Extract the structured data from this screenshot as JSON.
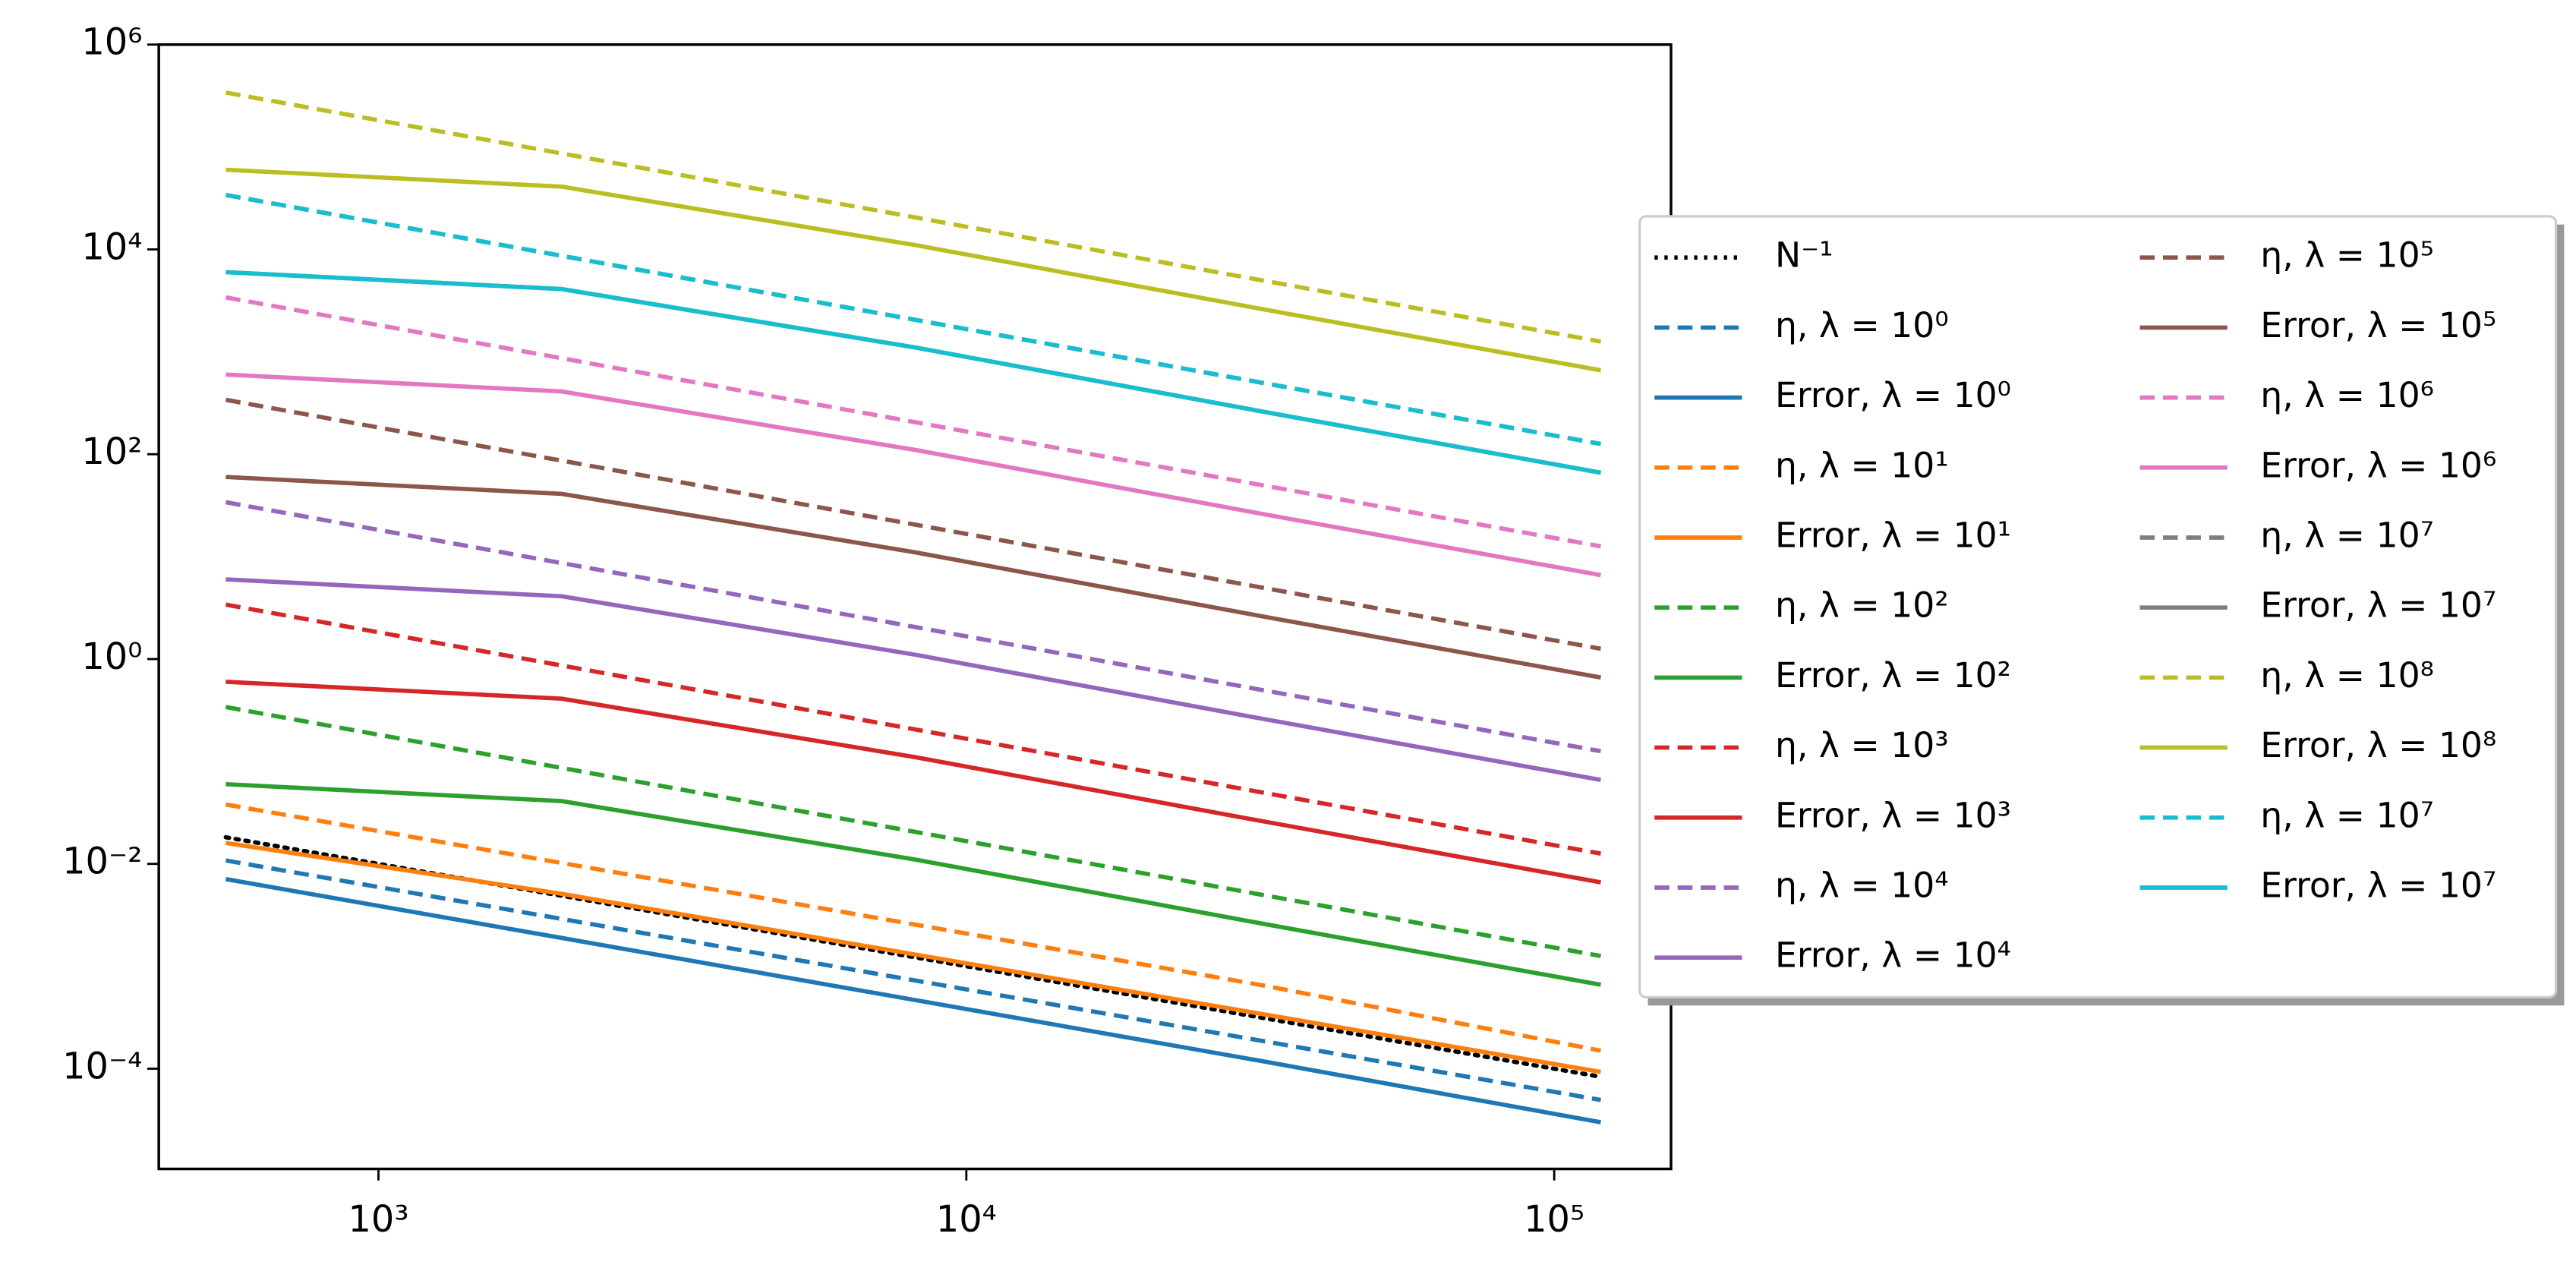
{
  "chart_data": {
    "type": "line",
    "x": [
      550,
      2050,
      8200,
      32000,
      120000
    ],
    "xlim": [
      423,
      158000
    ],
    "ylim": [
      1.05e-05,
      1000000
    ],
    "xscale": "log",
    "yscale": "log",
    "xticks": [
      {
        "value": 1000,
        "label": "10³"
      },
      {
        "value": 10000,
        "label": "10⁴"
      },
      {
        "value": 100000,
        "label": "10⁵"
      }
    ],
    "yticks": [
      {
        "value": 0.0001,
        "label": "10⁻⁴"
      },
      {
        "value": 0.01,
        "label": "10⁻²"
      },
      {
        "value": 1,
        "label": "10⁰"
      },
      {
        "value": 100,
        "label": "10²"
      },
      {
        "value": 10000,
        "label": "10⁴"
      },
      {
        "value": 1000000,
        "label": "10⁶"
      }
    ],
    "legend_loc": "right",
    "legend_columns": 2,
    "series": [
      {
        "name": "N⁻¹",
        "color": "#000000",
        "style": "dotted",
        "values": [
          0.01818,
          0.004878,
          0.00122,
          0.0003125,
          8.33e-05
        ]
      },
      {
        "name": "η, λ = 10⁰",
        "color": "#1f77b4",
        "style": "dashed",
        "values": [
          0.0108,
          0.0029,
          0.000725,
          0.000186,
          4.95e-05
        ]
      },
      {
        "name": "Error, λ = 10⁰",
        "color": "#1f77b4",
        "style": "solid",
        "values": [
          0.0071,
          0.00189,
          0.000467,
          0.000118,
          3e-05
        ]
      },
      {
        "name": "η, λ = 10¹",
        "color": "#ff7f0e",
        "style": "dashed",
        "values": [
          0.038,
          0.0102,
          0.00255,
          0.00065,
          0.00015
        ]
      },
      {
        "name": "Error, λ = 10¹",
        "color": "#ff7f0e",
        "style": "solid",
        "values": [
          0.016,
          0.0051,
          0.0013,
          0.00034,
          9.3e-05
        ]
      },
      {
        "name": "η, λ = 10²",
        "color": "#2ca02c",
        "style": "dashed",
        "values": [
          0.34,
          0.0865,
          0.0205,
          0.00496,
          0.00126
        ]
      },
      {
        "name": "Error, λ = 10²",
        "color": "#2ca02c",
        "style": "solid",
        "values": [
          0.06,
          0.041,
          0.011,
          0.0026,
          0.00066
        ]
      },
      {
        "name": "η, λ = 10³",
        "color": "#d62728",
        "style": "dashed",
        "values": [
          3.4,
          0.865,
          0.205,
          0.0496,
          0.0126
        ]
      },
      {
        "name": "Error, λ = 10³",
        "color": "#d62728",
        "style": "solid",
        "values": [
          0.6,
          0.41,
          0.11,
          0.026,
          0.0066
        ]
      },
      {
        "name": "η, λ = 10⁴",
        "color": "#9467bd",
        "style": "dashed",
        "values": [
          34,
          8.65,
          2.05,
          0.496,
          0.126
        ]
      },
      {
        "name": "Error, λ = 10⁴",
        "color": "#9467bd",
        "style": "solid",
        "values": [
          6,
          4.1,
          1.1,
          0.26,
          0.066
        ]
      },
      {
        "name": "η, λ = 10⁵",
        "color": "#8c564b",
        "style": "dashed",
        "values": [
          340,
          86.5,
          20.5,
          4.96,
          1.26
        ]
      },
      {
        "name": "Error, λ = 10⁵",
        "color": "#8c564b",
        "style": "solid",
        "values": [
          60,
          41,
          11,
          2.6,
          0.66
        ]
      },
      {
        "name": "η, λ = 10⁶",
        "color": "#e377c2",
        "style": "dashed",
        "values": [
          3400,
          865,
          205,
          49.6,
          12.6
        ]
      },
      {
        "name": "Error, λ = 10⁶",
        "color": "#e377c2",
        "style": "solid",
        "values": [
          600,
          410,
          110,
          26,
          6.6
        ]
      },
      {
        "name": "η, λ = 10⁷",
        "color": "#7f7f7f",
        "style": "dashed",
        "values": [
          34000,
          8650,
          2050,
          496,
          126
        ]
      },
      {
        "name": "Error, λ = 10⁷",
        "color": "#7f7f7f",
        "style": "solid",
        "values": [
          6000,
          4100,
          1100,
          260,
          66
        ]
      },
      {
        "name": "η, λ = 10⁸",
        "color": "#bcbd22",
        "style": "dashed",
        "values": [
          340000,
          86500,
          20500,
          4960,
          1260
        ]
      },
      {
        "name": "Error, λ = 10⁸",
        "color": "#bcbd22",
        "style": "solid",
        "values": [
          60000,
          41000,
          11000,
          2600,
          660
        ]
      },
      {
        "name": "η, λ = 10⁷",
        "color": "#17becf",
        "style": "dashed",
        "values": [
          34000,
          8650,
          2050,
          496,
          126
        ]
      },
      {
        "name": "Error, λ = 10⁷",
        "color": "#17becf",
        "style": "solid",
        "values": [
          6000,
          4100,
          1100,
          260,
          66
        ]
      }
    ]
  }
}
